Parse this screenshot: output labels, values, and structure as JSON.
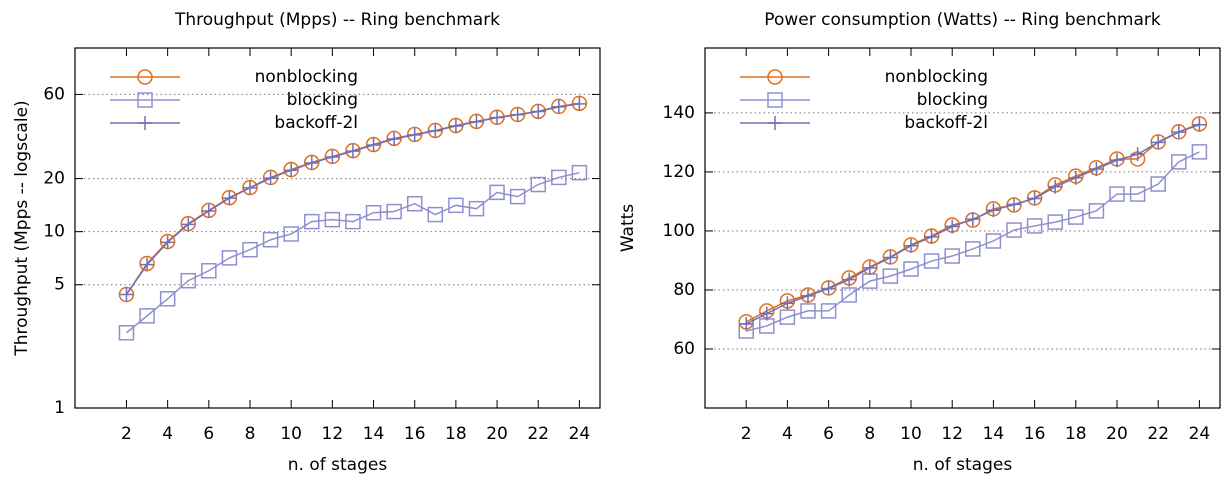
{
  "chart_data": [
    {
      "type": "line",
      "title": "Throughput (Mpps) -- Ring benchmark",
      "x_label": "n. of stages",
      "y_label": "Throughput (Mpps -- logscale)",
      "log_y": true,
      "grid": true,
      "legend": "upper left",
      "xlim": [
        -0.5,
        25
      ],
      "xticks": [
        2,
        4,
        6,
        8,
        10,
        12,
        14,
        16,
        18,
        20,
        22,
        24
      ],
      "ylim": [
        1,
        110
      ],
      "yticks": [
        1,
        5,
        10,
        20,
        60
      ],
      "x": [
        2,
        3,
        4,
        5,
        6,
        7,
        8,
        9,
        10,
        11,
        12,
        13,
        14,
        15,
        16,
        17,
        18,
        19,
        20,
        21,
        22,
        23,
        24
      ],
      "series": [
        {
          "name": "nonblocking",
          "color": "#e0701f",
          "marker": "circle",
          "values": [
            4.4,
            6.6,
            8.8,
            11.1,
            13.2,
            15.6,
            17.8,
            20.3,
            22.5,
            24.7,
            26.7,
            28.8,
            31.2,
            33.8,
            35.6,
            37.5,
            40,
            42.2,
            44.5,
            46.2,
            48.1,
            51.3,
            53.4
          ]
        },
        {
          "name": "blocking",
          "color": "#8f8fd0",
          "marker": "square",
          "values": [
            2.67,
            3.33,
            4.16,
            5.27,
            6.0,
            7.1,
            7.9,
            9.0,
            9.7,
            11.4,
            11.7,
            11.4,
            12.8,
            13.0,
            14.4,
            12.5,
            14.1,
            13.5,
            16.7,
            15.8,
            18.5,
            20.3,
            21.6
          ]
        },
        {
          "name": "backoff-2l",
          "color": "#7070b8",
          "marker": "plus",
          "values": [
            4.4,
            6.5,
            8.7,
            11.0,
            13.1,
            15.5,
            17.7,
            20.1,
            22.3,
            24.5,
            26.5,
            28.6,
            31.0,
            33.5,
            35.4,
            37.3,
            39.7,
            42.0,
            44.3,
            46.0,
            48.0,
            51.0,
            53.0
          ]
        }
      ]
    },
    {
      "type": "line",
      "title": "Power consumption (Watts) -- Ring benchmark",
      "x_label": "n. of stages",
      "y_label": "Watts",
      "log_y": false,
      "grid": true,
      "legend": "upper left",
      "xlim": [
        0,
        25
      ],
      "xticks": [
        2,
        4,
        6,
        8,
        10,
        12,
        14,
        16,
        18,
        20,
        22,
        24
      ],
      "ylim": [
        40,
        162
      ],
      "yticks": [
        60,
        80,
        100,
        120,
        140
      ],
      "x": [
        2,
        3,
        4,
        5,
        6,
        7,
        8,
        9,
        10,
        11,
        12,
        13,
        14,
        15,
        16,
        17,
        18,
        19,
        20,
        21,
        22,
        23,
        24
      ],
      "series": [
        {
          "name": "nonblocking",
          "color": "#e0701f",
          "marker": "circle",
          "values": [
            69.2,
            72.9,
            76.3,
            78.3,
            80.7,
            84.1,
            87.8,
            91.2,
            95.3,
            98.3,
            102,
            103.7,
            107.5,
            108.8,
            111.2,
            115.6,
            118.6,
            121.4,
            124.4,
            124.4,
            130.2,
            133.6,
            136.3
          ]
        },
        {
          "name": "blocking",
          "color": "#8f8fd0",
          "marker": "square",
          "values": [
            66.1,
            67.8,
            70.8,
            72.9,
            72.9,
            78.3,
            83,
            84.7,
            87.1,
            89.8,
            91.5,
            93.9,
            96.6,
            100.3,
            101.7,
            103,
            104.7,
            106.8,
            112.5,
            112.5,
            115.9,
            123.4,
            126.8
          ]
        },
        {
          "name": "backoff-2l",
          "color": "#7070b8",
          "marker": "plus",
          "values": [
            68.5,
            72,
            75.5,
            78,
            80.5,
            83.5,
            87.5,
            91,
            95,
            98,
            101.5,
            104,
            107,
            109,
            111,
            115,
            118,
            121,
            124,
            126,
            130,
            133.5,
            136
          ]
        }
      ]
    }
  ]
}
